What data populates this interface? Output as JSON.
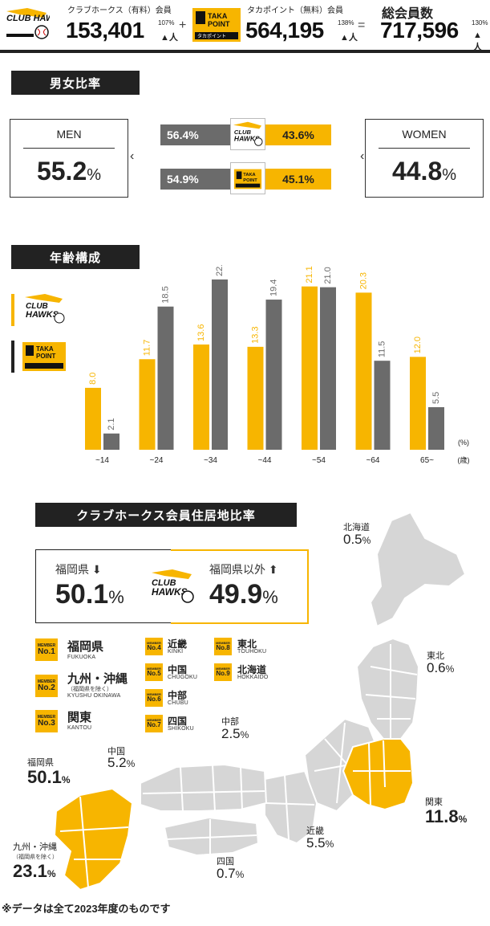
{
  "header": {
    "club_logo_text": "CLUB HAWKS",
    "taka_logo_text": "TAKA POINT",
    "taka_logo_sub": "タカポイント",
    "club_label": "クラブホークス（有料）会員",
    "club_count": "153,401",
    "club_growth": "107%",
    "taka_label": "タカポイント（無料）会員",
    "taka_count": "564,195",
    "taka_growth": "138%",
    "plus": "+",
    "equals": "=",
    "total_label": "総会員数",
    "total_count": "717,596",
    "total_growth": "130%",
    "person_unit": "人"
  },
  "gender": {
    "title": "男女比率",
    "men_label": "MEN",
    "men_value": "55.2",
    "women_label": "WOMEN",
    "women_value": "44.8",
    "percent": "%",
    "club_men": "56.4%",
    "club_women": "43.6%",
    "taka_men": "54.9%",
    "taka_women": "45.1%",
    "colors": {
      "men": "#6b6b6b",
      "women": "#f7b500"
    }
  },
  "chart_data": {
    "type": "bar",
    "title": "年齢構成",
    "categories": [
      "~14",
      "~24",
      "~34",
      "~44",
      "~54",
      "~64",
      "65~"
    ],
    "series": [
      {
        "values": [
          8.0,
          11.7,
          13.6,
          13.3,
          21.1,
          20.3,
          12.0
        ],
        "color": "#f7b500"
      },
      {
        "values": [
          2.1,
          18.5,
          22.0,
          19.4,
          21.0,
          11.5,
          5.5
        ],
        "color": "#6b6b6b"
      }
    ],
    "value_labels": [
      [
        "8.0",
        "11.7",
        "13.6",
        "13.3",
        "21.1",
        "20.3",
        "12.0"
      ],
      [
        "2.1",
        "18.5",
        "22.0",
        "19.4",
        "21.0",
        "11.5",
        "5.5"
      ]
    ],
    "ylabel": "(%)",
    "xlabel": "(歳)",
    "ylim": [
      0,
      22
    ],
    "legend_position": "left",
    "grid": false
  },
  "residence": {
    "title": "クラブホークス会員住居地比率",
    "fukuoka_label": "福岡県",
    "fukuoka_value": "50.1",
    "outside_label": "福岡県以外",
    "outside_value": "49.9",
    "percent": "%",
    "member_word": "MEMBER",
    "ranking": [
      {
        "no": "No.1",
        "ja": "福岡県",
        "en": "FUKUOKA",
        "note": ""
      },
      {
        "no": "No.2",
        "ja": "九州・沖縄",
        "en": "KYUSHU OKINAWA",
        "note": "（福岡県を除く）"
      },
      {
        "no": "No.3",
        "ja": "関東",
        "en": "KANTOU",
        "note": ""
      },
      {
        "no": "No.4",
        "ja": "近畿",
        "en": "KINKI",
        "note": ""
      },
      {
        "no": "No.5",
        "ja": "中国",
        "en": "CHUGOKU",
        "note": ""
      },
      {
        "no": "No.6",
        "ja": "中部",
        "en": "CHUBU",
        "note": ""
      },
      {
        "no": "No.7",
        "ja": "四国",
        "en": "SHIKOKU",
        "note": ""
      },
      {
        "no": "No.8",
        "ja": "東北",
        "en": "TOUHOKU",
        "note": ""
      },
      {
        "no": "No.9",
        "ja": "北海道",
        "en": "HOKKAIDO",
        "note": ""
      }
    ],
    "map_labels": {
      "hokkaido": {
        "name": "北海道",
        "value": "0.5"
      },
      "tohoku": {
        "name": "東北",
        "value": "0.6"
      },
      "chubu": {
        "name": "中部",
        "value": "2.5"
      },
      "chugoku": {
        "name": "中国",
        "value": "5.2"
      },
      "fukuoka": {
        "name": "福岡県",
        "value": "50.1"
      },
      "kanto": {
        "name": "関東",
        "value": "11.8"
      },
      "kinki": {
        "name": "近畿",
        "value": "5.5"
      },
      "shikoku": {
        "name": "四国",
        "value": "0.7"
      },
      "kyushu": {
        "name": "九州・沖縄",
        "note": "（福岡県を除く）",
        "value": "23.1"
      }
    }
  },
  "footnote": "※データは全て2023年度のものです"
}
